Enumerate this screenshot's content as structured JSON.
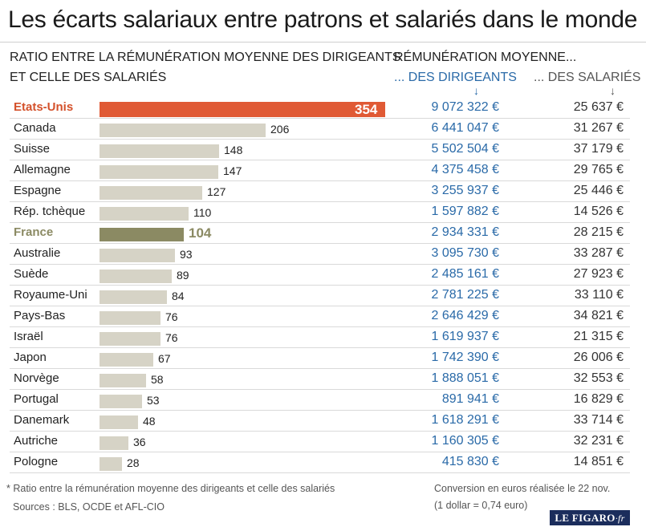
{
  "title": "Les écarts salariaux entre patrons et salariés dans le monde",
  "ratio_header": [
    "RATIO ENTRE LA RÉMUNÉRATION MOYENNE DES DIRIGEANTS",
    "ET CELLE DES SALARIÉS"
  ],
  "pay_header": "RÉMUNÉRATION MOYENNE...",
  "ceo_header": "... DES DIRIGEANTS",
  "emp_header": "... DES SALARIÉS",
  "arrow_glyph": "↓",
  "footnote": "* Ratio entre la rémunération moyenne des dirigeants et celle des salariés",
  "sources": "Sources : BLS, OCDE et AFL-CIO",
  "conversion": [
    "Conversion en euros réalisée le 22 nov.",
    "(1 dollar = 0,74 euro)"
  ],
  "logo": {
    "main": "LE FIGARO",
    "suffix": "·fr"
  },
  "colors": {
    "highlight_us": "#e05a35",
    "highlight_fr": "#8b8a63",
    "bar": "#d6d3c6",
    "ceo_text": "#2a6aa8"
  },
  "chart_data": {
    "type": "bar",
    "orientation": "horizontal",
    "xlim": [
      0,
      354
    ],
    "categories": [
      "Etats-Unis",
      "Canada",
      "Suisse",
      "Allemagne",
      "Espagne",
      "Rép. tchèque",
      "France",
      "Australie",
      "Suède",
      "Royaume-Uni",
      "Pays-Bas",
      "Israël",
      "Japon",
      "Norvège",
      "Portugal",
      "Danemark",
      "Autriche",
      "Pologne"
    ],
    "values": [
      354,
      206,
      148,
      147,
      127,
      110,
      104,
      93,
      89,
      84,
      76,
      76,
      67,
      58,
      53,
      48,
      36,
      28
    ],
    "highlight": {
      "Etats-Unis": "us",
      "France": "fr"
    },
    "ceo_pay": [
      "9 072 322 €",
      "6 441 047 €",
      "5 502 504 €",
      "4 375 458 €",
      "3 255 937 €",
      "1 597 882 €",
      "2 934 331 €",
      "3 095 730 €",
      "2 485 161 €",
      "2 781 225 €",
      "2 646 429 €",
      "1 619 937 €",
      "1 742 390 €",
      "1 888 051 €",
      "891 941 €",
      "1 618 291 €",
      "1 160 305 €",
      "415 830 €"
    ],
    "employee_pay": [
      "25 637 €",
      "31 267 €",
      "37 179 €",
      "29 765 €",
      "25 446 €",
      "14 526 €",
      "28 215 €",
      "33 287 €",
      "27 923 €",
      "33 110 €",
      "34 821 €",
      "21 315 €",
      "26 006 €",
      "32 553 €",
      "16 829 €",
      "33 714 €",
      "32 231 €",
      "14 851 €"
    ]
  }
}
